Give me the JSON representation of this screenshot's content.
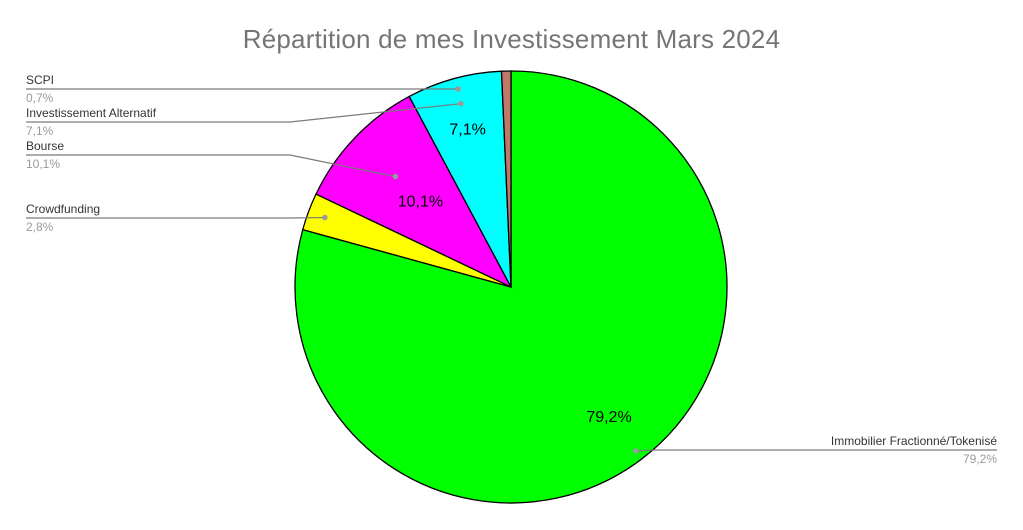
{
  "chart_data": {
    "type": "pie",
    "title": "Répartition de mes Investissement Mars 2024",
    "slices": [
      {
        "name": "Immobilier Fractionné/Tokenisé",
        "value": 79.2,
        "label": "79,2%",
        "color": "#00ff00",
        "inside_label": "79,2%",
        "legend_side": "right"
      },
      {
        "name": "Crowdfunding",
        "value": 2.8,
        "label": "2,8%",
        "color": "#ffff00",
        "inside_label": "",
        "legend_side": "left"
      },
      {
        "name": "Bourse",
        "value": 10.1,
        "label": "10,1%",
        "color": "#ff00ff",
        "inside_label": "10,1%",
        "legend_side": "left"
      },
      {
        "name": "Investissement Alternatif",
        "value": 7.1,
        "label": "7,1%",
        "color": "#00ffff",
        "inside_label": "7,1%",
        "legend_side": "left"
      },
      {
        "name": "SCPI",
        "value": 0.7,
        "label": "0,7%",
        "color": "#c0786a",
        "inside_label": "",
        "legend_side": "left"
      }
    ],
    "start_angle": "12 o'clock",
    "direction": "clockwise"
  }
}
